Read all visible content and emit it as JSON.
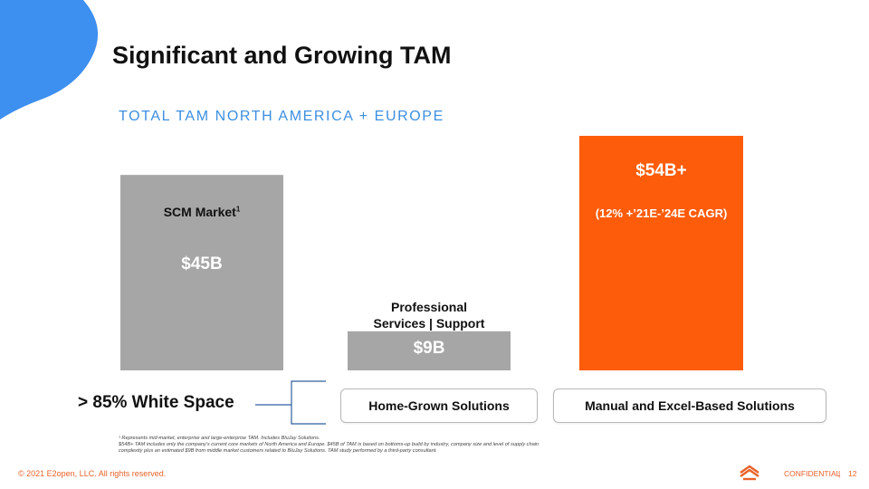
{
  "header": {
    "title": "Significant and Growing TAM",
    "subtitle": "TOTAL TAM NORTH AMERICA + EUROPE"
  },
  "chart_data": {
    "type": "bar",
    "title": "TOTAL TAM NORTH AMERICA + EUROPE",
    "ylim": [
      0,
      54
    ],
    "bars": [
      {
        "category": "SCM Market",
        "superscript": "1",
        "value": 45,
        "display": "$45B",
        "note": "",
        "color": "#a6a6a6"
      },
      {
        "category": "Professional Services | Support",
        "superscript": "",
        "value": 9,
        "display": "$9B",
        "note": "",
        "color": "#a6a6a6"
      },
      {
        "category": "",
        "superscript": "",
        "value": 54,
        "display": "$54B+",
        "note": "(12% +'21E-'24E CAGR)",
        "color": "#fd5c0a"
      }
    ]
  },
  "labels": {
    "scm_market": "SCM Market",
    "scm_sup": "1",
    "professional_line1": "Professional",
    "professional_line2": "Services | Support",
    "cagr_note": "(12% +’21E-’24E CAGR)"
  },
  "white_space": {
    "label": "> 85% White Space",
    "solutions": [
      "Home-Grown Solutions",
      "Manual and Excel-Based Solutions"
    ]
  },
  "footnotes": {
    "line1": "¹ Represents mid-market, enterprise and large-enterprise TAM. Includes BluJay Solutions.",
    "line2": "$54B+ TAM includes only the company’s current core markets of North America and Europe. $45B of TAM is based on bottoms-up build by industry, company size and level of supply chain complexity plus an estimated $9B from middle market customers related to BluJay Solutions. TAM study performed by a third-party consultant."
  },
  "footer": {
    "copyright": "© 2021 E2open, LLC. All rights reserved.",
    "confidential": "CONFIDENTIAL",
    "separator": "|",
    "page_number": "12"
  },
  "colors": {
    "accent_blue": "#3d8fe0",
    "corner_blue": "#3d8ff0",
    "bar_gray": "#a6a6a6",
    "bar_orange": "#fd5c0a",
    "footer_orange": "#e8622a"
  }
}
